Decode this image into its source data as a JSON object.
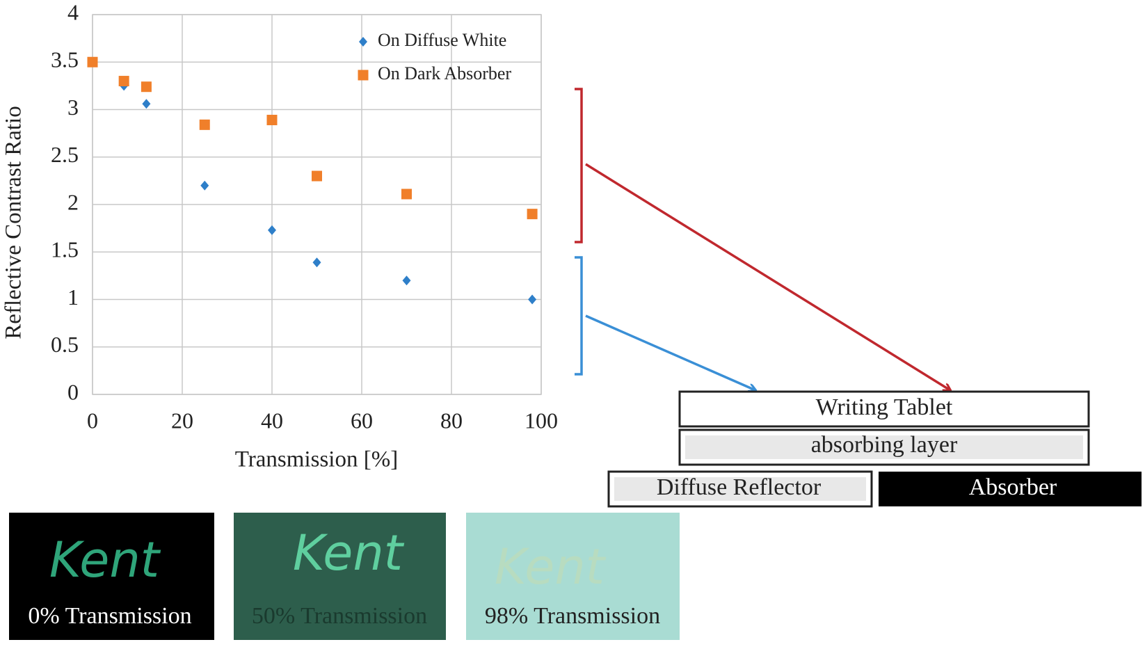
{
  "chart_data": {
    "type": "scatter",
    "x_label": "Transmission [%]",
    "y_label": "Reflective Contrast Ratio",
    "xlim": [
      0,
      100
    ],
    "xticks": [
      0,
      20,
      40,
      60,
      80,
      100
    ],
    "ylim": [
      0,
      4
    ],
    "yticks": [
      0,
      0.5,
      1,
      1.5,
      2,
      2.5,
      3,
      3.5,
      4
    ],
    "grid": true,
    "legend": "upper right",
    "series": [
      {
        "name": "On Diffuse White",
        "color": "#2e7fc9",
        "marker": "diamond",
        "x": [
          7,
          12,
          25,
          40,
          50,
          70,
          98
        ],
        "values": [
          3.25,
          3.06,
          2.2,
          1.73,
          1.39,
          1.2,
          1.0
        ]
      },
      {
        "name": "On Dark Absorber",
        "color": "#f07f2a",
        "marker": "square",
        "x": [
          0,
          7,
          12,
          25,
          40,
          50,
          70,
          98
        ],
        "values": [
          3.5,
          3.3,
          3.24,
          2.84,
          2.89,
          2.3,
          2.11,
          1.9
        ]
      }
    ]
  },
  "diagram": {
    "tablet": "Writing Tablet",
    "layer": "absorbing layer",
    "reflector": "Diffuse Reflector",
    "absorber": "Absorber"
  },
  "photos": [
    {
      "handwriting": "Kent",
      "caption": "0% Transmission"
    },
    {
      "handwriting": "Kent",
      "caption": "50% Transmission"
    },
    {
      "handwriting": "Kent",
      "caption": "98% Transmission"
    }
  ]
}
